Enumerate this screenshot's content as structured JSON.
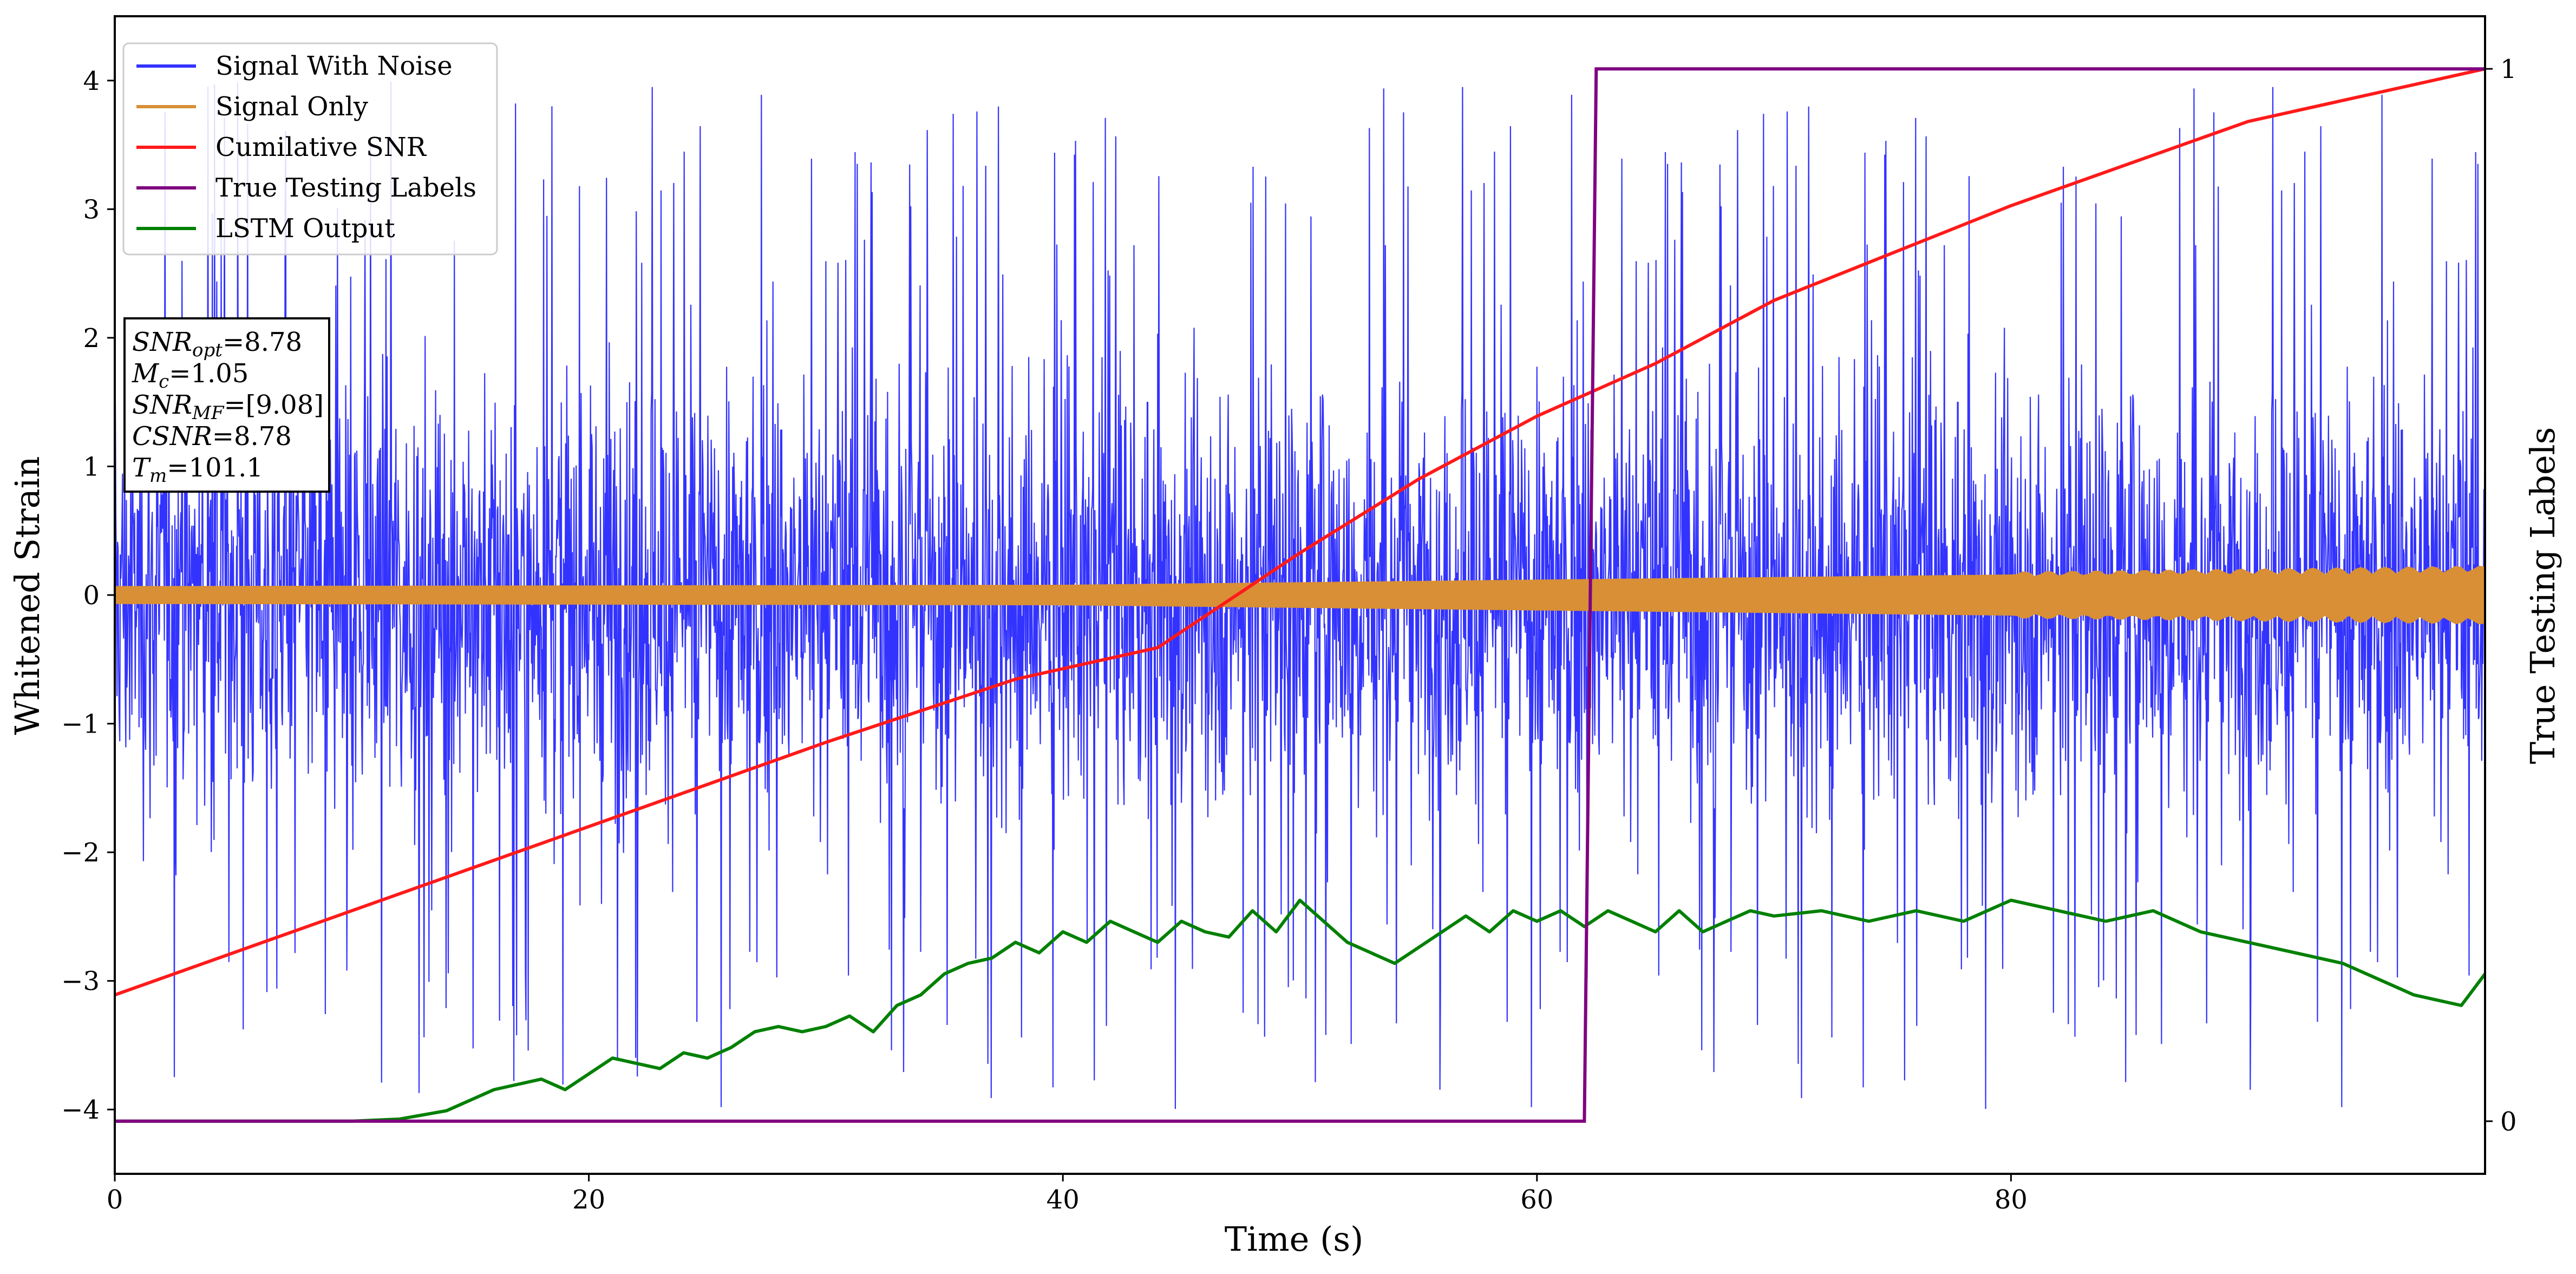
{
  "chart_data": {
    "type": "line",
    "xlabel": "Time (s)",
    "ylabel": "Whitened Strain",
    "y2label": "True Testing Labels",
    "xlim": [
      0,
      100
    ],
    "ylim": [
      -4.5,
      4.5
    ],
    "y2lim": [
      -0.05,
      1.05
    ],
    "x_ticks": [
      0,
      20,
      40,
      60,
      80
    ],
    "x_tick_labels": [
      "0",
      "20",
      "40",
      "60",
      "80"
    ],
    "y_ticks": [
      -4,
      -3,
      -2,
      -1,
      0,
      1,
      2,
      3,
      4
    ],
    "y_tick_labels": [
      "−4",
      "−3",
      "−2",
      "−1",
      "0",
      "1",
      "2",
      "3",
      "4"
    ],
    "y2_ticks": [
      0,
      1
    ],
    "y2_tick_labels": [
      "0",
      "1"
    ],
    "grid": false,
    "legend_position": "upper-left",
    "series": [
      {
        "name": "Signal With Noise",
        "axis": "left",
        "color": "#3333ff",
        "style": "dense-noise",
        "approx_envelope": {
          "x": [
            0,
            100
          ],
          "core_amplitude": [
            2.0,
            2.0
          ],
          "peak_amplitude": [
            3.9,
            4.1
          ]
        }
      },
      {
        "name": "Signal Only",
        "axis": "left",
        "color": "#d88f35",
        "style": "chirp-band",
        "approx_envelope": {
          "x": [
            0,
            40,
            60,
            80,
            100
          ],
          "amplitude": [
            0.07,
            0.08,
            0.12,
            0.16,
            0.2
          ]
        }
      },
      {
        "name": "Cumilative SNR",
        "axis": "right",
        "color": "#ff1a1a",
        "x": [
          0,
          10,
          20,
          30,
          38,
          44,
          50,
          55,
          60,
          65,
          70,
          80,
          90,
          100
        ],
        "y": [
          0.12,
          0.2,
          0.28,
          0.36,
          0.42,
          0.45,
          0.54,
          0.61,
          0.67,
          0.72,
          0.78,
          0.87,
          0.95,
          1.0
        ]
      },
      {
        "name": "True Testing Labels",
        "axis": "right",
        "color": "#800080",
        "x": [
          0,
          62.0,
          62.5,
          100
        ],
        "y": [
          0,
          0,
          1,
          1
        ]
      },
      {
        "name": "LSTM Output",
        "axis": "right",
        "color": "#008000",
        "x": [
          0,
          10,
          12,
          14,
          16,
          18,
          19,
          20,
          21,
          22,
          23,
          24,
          25,
          26,
          27,
          28,
          29,
          30,
          31,
          32,
          33,
          34,
          35,
          36,
          37,
          38,
          39,
          40,
          41,
          42,
          43,
          44,
          45,
          46,
          47,
          48,
          49,
          50,
          51,
          52,
          53,
          54,
          55,
          56,
          57,
          58,
          59,
          60,
          61,
          62,
          63,
          64,
          65,
          66,
          67,
          68,
          69,
          70,
          72,
          74,
          76,
          78,
          80,
          82,
          84,
          86,
          88,
          90,
          92,
          94,
          95,
          96,
          97,
          98,
          99,
          100
        ],
        "y": [
          0.0,
          0.0,
          0.002,
          0.01,
          0.03,
          0.04,
          0.03,
          0.045,
          0.06,
          0.055,
          0.05,
          0.065,
          0.06,
          0.07,
          0.085,
          0.09,
          0.085,
          0.09,
          0.1,
          0.085,
          0.11,
          0.12,
          0.14,
          0.15,
          0.155,
          0.17,
          0.16,
          0.18,
          0.17,
          0.19,
          0.18,
          0.17,
          0.19,
          0.18,
          0.175,
          0.2,
          0.18,
          0.21,
          0.19,
          0.17,
          0.16,
          0.15,
          0.165,
          0.18,
          0.195,
          0.18,
          0.2,
          0.19,
          0.2,
          0.185,
          0.2,
          0.19,
          0.18,
          0.2,
          0.18,
          0.19,
          0.2,
          0.195,
          0.2,
          0.19,
          0.2,
          0.19,
          0.21,
          0.2,
          0.19,
          0.2,
          0.18,
          0.17,
          0.16,
          0.15,
          0.14,
          0.13,
          0.12,
          0.115,
          0.11,
          0.14
        ]
      }
    ],
    "legend": [
      "Signal With Noise",
      "Signal Only",
      "Cumilative SNR",
      "True Testing Labels",
      "LSTM Output"
    ],
    "annotation_box": {
      "position": "upper-left",
      "lines": [
        {
          "label_main": "SNR",
          "label_sub": "opt",
          "value": "=8.78"
        },
        {
          "label_main": "M",
          "label_sub": "c",
          "value": "=1.05"
        },
        {
          "label_main": "SNR",
          "label_sub": "MF",
          "value": "=[9.08]"
        },
        {
          "label_main": "CSNR",
          "label_sub": "",
          "value": "=8.78"
        },
        {
          "label_main": "T",
          "label_sub": "m",
          "value": "=101.1"
        }
      ]
    }
  }
}
